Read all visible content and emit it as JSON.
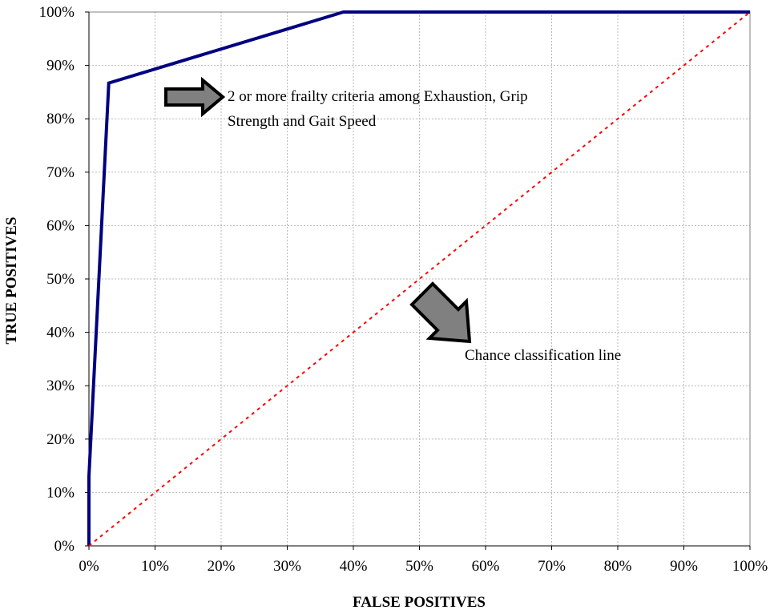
{
  "chart_data": {
    "type": "line",
    "title": "",
    "xlabel": "FALSE POSITIVES",
    "ylabel": "TRUE POSITIVES",
    "xlim": [
      0,
      100
    ],
    "ylim": [
      0,
      100
    ],
    "x_ticks": [
      "0%",
      "10%",
      "20%",
      "30%",
      "40%",
      "50%",
      "60%",
      "70%",
      "80%",
      "90%",
      "100%"
    ],
    "y_ticks": [
      "0%",
      "10%",
      "20%",
      "30%",
      "40%",
      "50%",
      "60%",
      "70%",
      "80%",
      "90%",
      "100%"
    ],
    "grid": true,
    "series": [
      {
        "color": "#000080",
        "style": "solid",
        "x": [
          0,
          0,
          3,
          38.5,
          100
        ],
        "y": [
          0,
          13,
          86.7,
          100,
          100
        ]
      },
      {
        "color": "#ff0000",
        "style": "dotted",
        "x": [
          0,
          100
        ],
        "y": [
          0,
          100
        ]
      }
    ],
    "annotations": [
      {
        "text_lines": [
          "2 or more frailty criteria among Exhaustion, Grip",
          "Strength and Gait Speed"
        ],
        "arrow_color": "#808080",
        "arrow_direction": "right"
      },
      {
        "text_lines": [
          "Chance classification line"
        ],
        "arrow_color": "#808080",
        "arrow_direction": "down-right"
      }
    ]
  }
}
